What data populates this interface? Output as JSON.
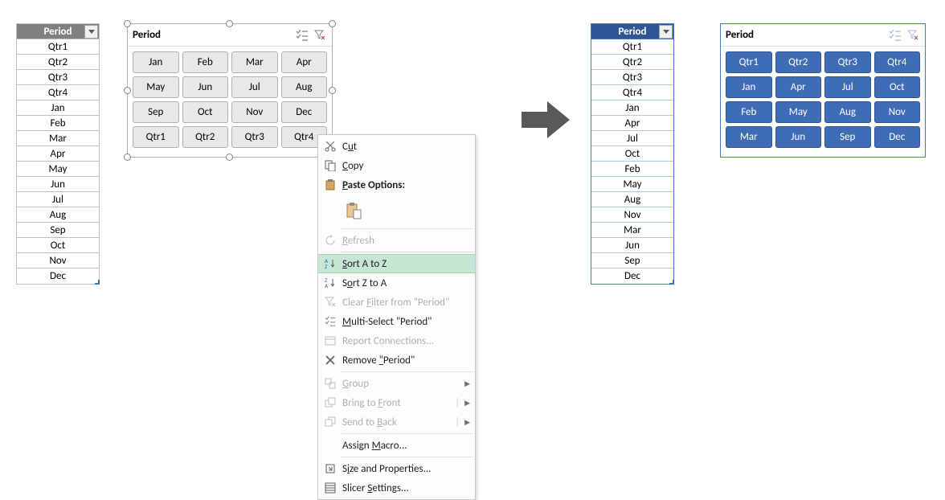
{
  "left_table": {
    "header": "Period",
    "rows": [
      "Qtr1",
      "Qtr2",
      "Qtr3",
      "Qtr4",
      "Jan",
      "Feb",
      "Mar",
      "Apr",
      "May",
      "Jun",
      "Jul",
      "Aug",
      "Sep",
      "Oct",
      "Nov",
      "Dec"
    ]
  },
  "left_slicer": {
    "title": "Period",
    "items": [
      "Jan",
      "Feb",
      "Mar",
      "Apr",
      "May",
      "Jun",
      "Jul",
      "Aug",
      "Sep",
      "Oct",
      "Nov",
      "Dec",
      "Qtr1",
      "Qtr2",
      "Qtr3",
      "Qtr4"
    ],
    "chip_bg": "#e8e8e8",
    "chip_border": "#b0b0b0",
    "chip_text": "#000000"
  },
  "context_menu": {
    "items": [
      {
        "id": "cut",
        "label": "Cut",
        "u": 1,
        "icon": "scissors",
        "enabled": true
      },
      {
        "id": "copy",
        "label": "Copy",
        "u": 0,
        "icon": "copy",
        "enabled": true
      },
      {
        "id": "paste",
        "label": "Paste Options:",
        "u": 0,
        "icon": "clipboard",
        "enabled": true,
        "bold": true
      },
      {
        "id": "paste-icons",
        "paste": true
      },
      {
        "id": "sep1",
        "sep": true
      },
      {
        "id": "refresh",
        "label": "Refresh",
        "u": 0,
        "icon": "refresh",
        "enabled": false
      },
      {
        "id": "sep2",
        "sep": true
      },
      {
        "id": "sort-az",
        "label": "Sort A to Z",
        "u": 0,
        "icon": "sortaz",
        "enabled": true,
        "hover": true
      },
      {
        "id": "sort-za",
        "label": "Sort Z to A",
        "u": 1,
        "icon": "sortza",
        "enabled": true
      },
      {
        "id": "clear-filter",
        "label": "Clear Filter from \"Period\"",
        "u": 6,
        "icon": "funnel-x",
        "enabled": false
      },
      {
        "id": "multi-select",
        "label": "Multi-Select \"Period\"",
        "u": 0,
        "icon": "multi",
        "enabled": true
      },
      {
        "id": "report-conn",
        "label": "Report Connections...",
        "icon": "report",
        "enabled": false
      },
      {
        "id": "remove",
        "label": "Remove \"Period\"",
        "u": 7,
        "icon": "x",
        "enabled": true
      },
      {
        "id": "sep3",
        "sep": true
      },
      {
        "id": "group",
        "label": "Group",
        "u": 0,
        "icon": "group",
        "enabled": false,
        "sub": true
      },
      {
        "id": "front",
        "label": "Bring to Front",
        "u": 9,
        "icon": "front",
        "enabled": false,
        "sub": true,
        "split": true
      },
      {
        "id": "back",
        "label": "Send to Back",
        "u": 8,
        "icon": "back",
        "enabled": false,
        "sub": true,
        "split": true
      },
      {
        "id": "sep4",
        "sep": true
      },
      {
        "id": "macro",
        "label": "Assign Macro...",
        "u": 7,
        "enabled": true
      },
      {
        "id": "sep5",
        "sep": true
      },
      {
        "id": "size",
        "label": "Size and Properties...",
        "u": 1,
        "icon": "size",
        "enabled": true
      },
      {
        "id": "settings",
        "label": "Slicer Settings...",
        "u": 7,
        "icon": "slicer",
        "enabled": true
      }
    ]
  },
  "right_table": {
    "header": "Period",
    "rows": [
      "Qtr1",
      "Qtr2",
      "Qtr3",
      "Qtr4",
      "Jan",
      "Apr",
      "Jul",
      "Oct",
      "Feb",
      "May",
      "Aug",
      "Nov",
      "Mar",
      "Jun",
      "Sep",
      "Dec"
    ]
  },
  "right_slicer": {
    "title": "Period",
    "items": [
      "Qtr1",
      "Qtr2",
      "Qtr3",
      "Qtr4",
      "Jan",
      "Apr",
      "Jul",
      "Oct",
      "Feb",
      "May",
      "Aug",
      "Nov",
      "Mar",
      "Jun",
      "Sep",
      "Dec"
    ],
    "chip_bg": "#3e6db5",
    "chip_border": "#2f5597",
    "chip_text": "#ffffff"
  },
  "colors": {
    "gray_header": "#808080",
    "blue_header": "#2f5597",
    "blue_border": "#4472c4",
    "arrow": "#595959",
    "menu_hover": "#c8e6d4"
  }
}
